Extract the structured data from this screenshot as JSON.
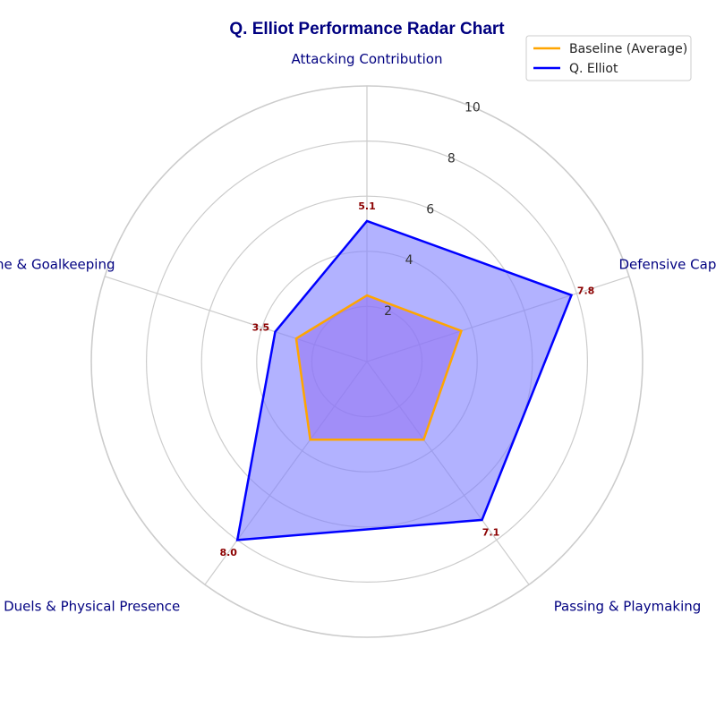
{
  "chart_data": {
    "type": "radar",
    "title": "Q. Elliot Performance Radar Chart",
    "categories": [
      "Attacking Contribution",
      "Defensive Capability",
      "Passing & Playmaking",
      "Duels & Physical Presence",
      "Discipline & Goalkeeping"
    ],
    "rlim": [
      0,
      10
    ],
    "rticks": [
      2,
      4,
      6,
      8,
      10
    ],
    "series": [
      {
        "name": "Baseline (Average)",
        "color": "#FFA500",
        "values": [
          2.4,
          3.6,
          3.5,
          3.5,
          2.7
        ],
        "fill": "#b05be0"
      },
      {
        "name": "Q. Elliot",
        "color": "#0000FF",
        "values": [
          5.1,
          7.8,
          7.1,
          8.0,
          3.5
        ],
        "fill": "#7f7fff",
        "data_labels": [
          "5.1",
          "7.8",
          "7.1",
          "8.0",
          "3.5"
        ]
      }
    ],
    "legend_position": "top-right",
    "grid": true
  }
}
